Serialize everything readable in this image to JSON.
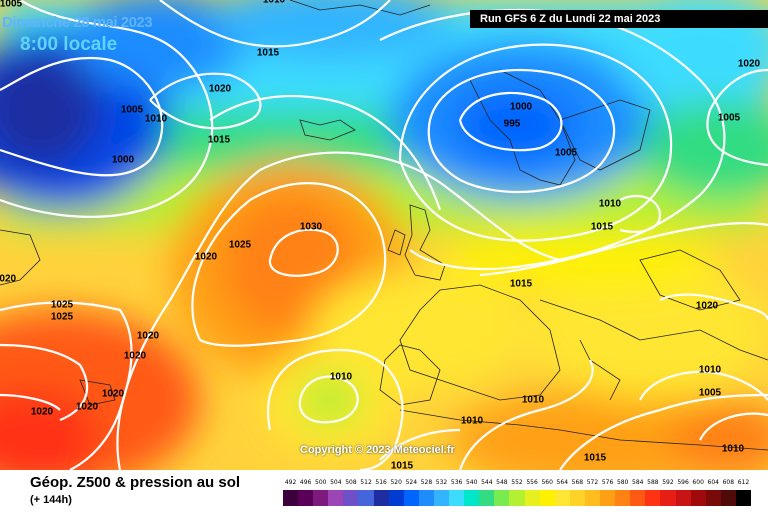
{
  "header": {
    "date_line": "Dimanche 28 mai 2023",
    "time_line": "8:00 locale",
    "run_info": "Run GFS 6 Z du Lundi 22 mai 2023"
  },
  "map": {
    "copyright": "Copyright © 2023 Meteociel.fr",
    "isobar_labels": [
      "1005",
      "1010",
      "1000",
      "1005",
      "1010",
      "1015",
      "1020",
      "1015",
      "1020",
      "1025",
      "1030",
      "1020",
      "1025",
      "1025",
      "1020",
      "1020",
      "1020",
      "1020",
      "1020",
      "1000",
      "995",
      "1005",
      "1010",
      "1015",
      "1005",
      "1020",
      "1015",
      "1020",
      "1010",
      "1010",
      "1010",
      "1005",
      "1010",
      "1010",
      "1015",
      "1015"
    ]
  },
  "footer": {
    "title": "Géop. Z500 & pression au sol",
    "subtitle": "(+ 144h)"
  },
  "legend": {
    "values": [
      "492",
      "496",
      "500",
      "504",
      "508",
      "512",
      "516",
      "520",
      "524",
      "528",
      "532",
      "536",
      "540",
      "544",
      "548",
      "552",
      "556",
      "560",
      "564",
      "568",
      "572",
      "576",
      "580",
      "584",
      "588",
      "592",
      "596",
      "600",
      "604",
      "608",
      "612"
    ],
    "colors": [
      "#3c003c",
      "#5a005a",
      "#7d1a7d",
      "#9b46b4",
      "#6e50c8",
      "#4664dc",
      "#1e2ea0",
      "#003cd2",
      "#0064ff",
      "#1e8cff",
      "#32b4ff",
      "#3cdcff",
      "#00e6c8",
      "#32dc82",
      "#78eb50",
      "#b4f032",
      "#e6f01e",
      "#fff000",
      "#ffe632",
      "#ffd228",
      "#ffbe1e",
      "#ffa014",
      "#ff8214",
      "#ff5a14",
      "#ff3214",
      "#e61e14",
      "#c81414",
      "#a00a0a",
      "#780a0a",
      "#500a0a",
      "#000000"
    ]
  }
}
